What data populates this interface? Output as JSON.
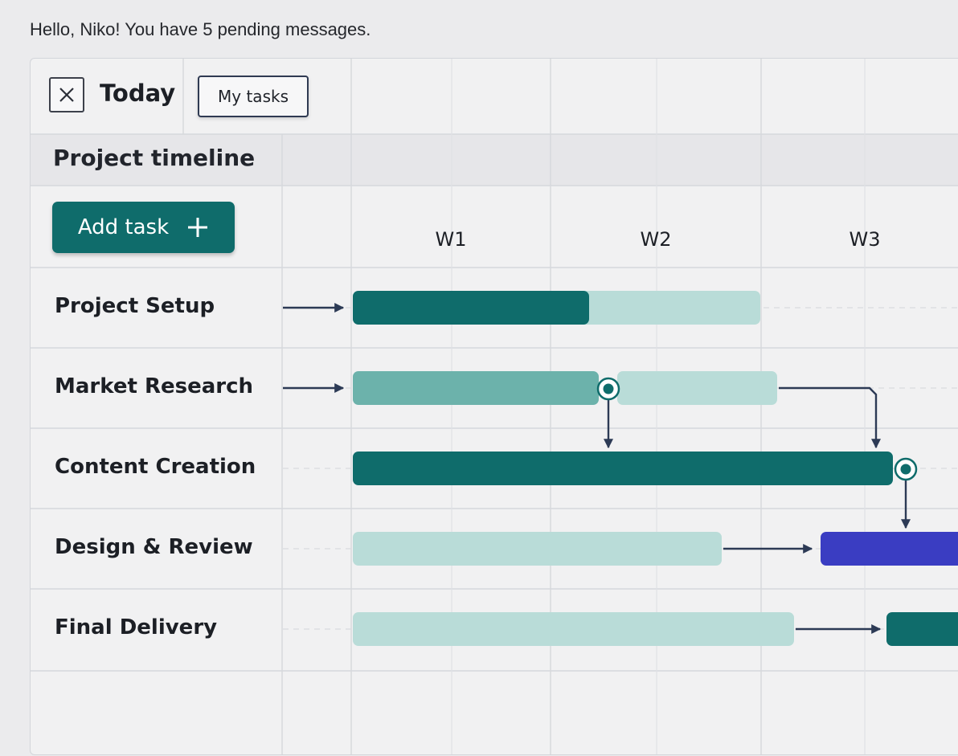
{
  "greeting": "Hello, Niko! You have 5 pending messages.",
  "toolbar": {
    "close_icon": "close-icon",
    "title": "Today",
    "my_tasks_label": "My tasks"
  },
  "timeline": {
    "title": "Project timeline",
    "add_task_label": "Add task",
    "add_icon": "plus-icon",
    "weeks": [
      "W1",
      "W2",
      "W3"
    ],
    "colors": {
      "teal_dark": "#0f6c6b",
      "teal_mid": "#6cb2ab",
      "teal_light": "#b9dcd8",
      "indigo": "#3a3dc2",
      "connector": "#2c3a55"
    },
    "tasks": [
      {
        "name": "Project Setup",
        "progress": 0.58
      },
      {
        "name": "Market Research",
        "status": "milestone"
      },
      {
        "name": "Content Creation",
        "status": "milestone"
      },
      {
        "name": "Design & Review",
        "status": "active"
      },
      {
        "name": "Final Delivery",
        "status": "active"
      }
    ]
  }
}
